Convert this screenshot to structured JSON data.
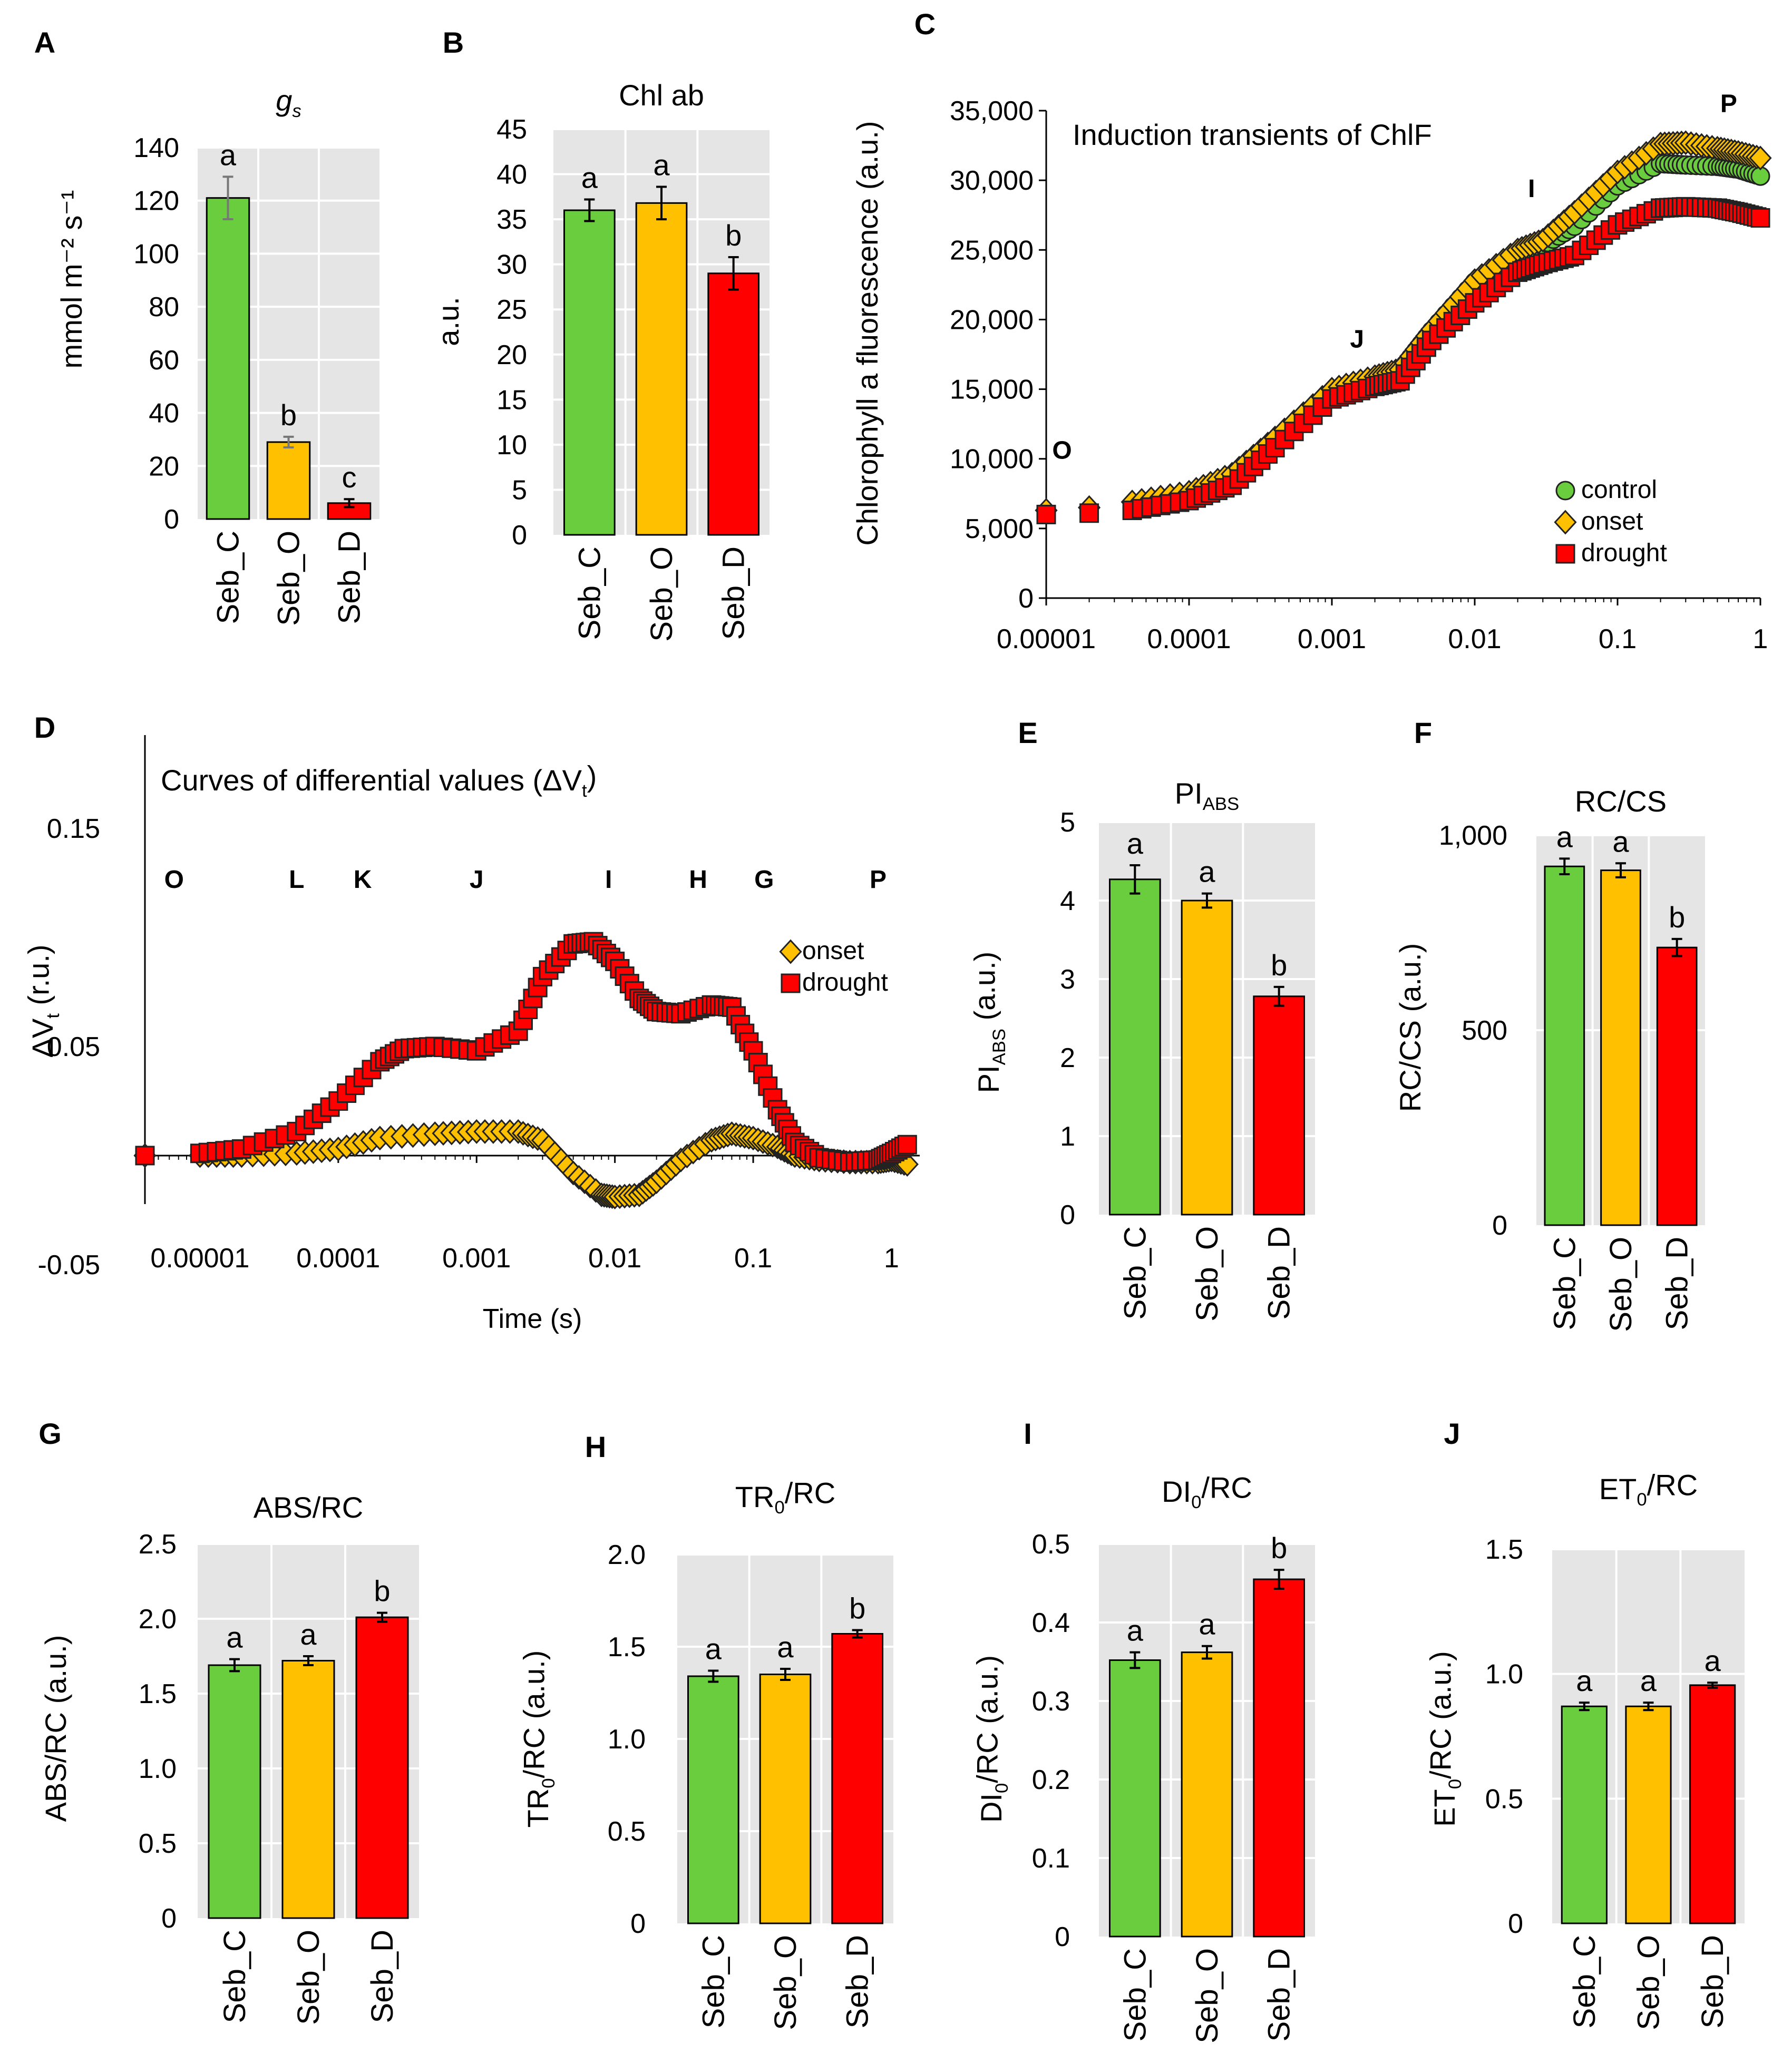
{
  "figure": {
    "panel_labels": [
      "A",
      "B",
      "C",
      "D",
      "E",
      "F",
      "G",
      "H",
      "I",
      "J"
    ]
  },
  "colors": {
    "control": "#6ACD3D",
    "onset": "#FFC000",
    "drought": "#FF0000",
    "plot_bg": "#E5E5E5",
    "gridline": "#FFFFFF"
  },
  "chart_data": [
    {
      "panel": "A",
      "type": "bar",
      "title_main": "g",
      "title_sub": "s",
      "ylabel": "mmol m⁻² s⁻¹",
      "categories": [
        "Seb_C",
        "Seb_O",
        "Seb_D"
      ],
      "values": [
        121,
        29,
        6
      ],
      "errors": [
        8,
        2,
        1.5
      ],
      "letters": [
        "a",
        "b",
        "c"
      ],
      "ylim": [
        0,
        140
      ],
      "yticks": [
        0,
        20,
        40,
        60,
        80,
        100,
        120,
        140
      ],
      "ytick_labels": [
        "0",
        "20",
        "40",
        "60",
        "80",
        "100",
        "120",
        "140"
      ]
    },
    {
      "panel": "B",
      "type": "bar",
      "title_main": "Chl ab",
      "title_sub": "",
      "ylabel": "a.u.",
      "categories": [
        "Seb_C",
        "Seb_O",
        "Seb_D"
      ],
      "values": [
        36,
        36.8,
        29
      ],
      "errors": [
        1.2,
        1.8,
        1.8
      ],
      "letters": [
        "a",
        "a",
        "b"
      ],
      "ylim": [
        0,
        45
      ],
      "yticks": [
        0,
        5,
        10,
        15,
        20,
        25,
        30,
        35,
        40,
        45
      ],
      "ytick_labels": [
        "0",
        "5",
        "10",
        "15",
        "20",
        "25",
        "30",
        "35",
        "40",
        "45"
      ]
    },
    {
      "panel": "C",
      "type": "scatter",
      "title": "Induction transients of ChlF",
      "ylabel": "Chlorophyll a fluorescence (a.u.)",
      "xscale": "log",
      "xlim": [
        1e-05,
        1
      ],
      "xticks": [
        1e-05,
        0.0001,
        0.001,
        0.01,
        0.1,
        1
      ],
      "xtick_labels": [
        "0.00001",
        "0.0001",
        "0.001",
        "0.01",
        "0.1",
        "1"
      ],
      "ylim": [
        0,
        35000
      ],
      "yticks": [
        0,
        5000,
        10000,
        15000,
        20000,
        25000,
        30000,
        35000
      ],
      "ytick_labels": [
        "0",
        "5,000",
        "10,000",
        "15,000",
        "20,000",
        "25,000",
        "30,000",
        "35,000"
      ],
      "phase_labels": [
        {
          "text": "O",
          "x": 1e-05,
          "y": 10000
        },
        {
          "text": "J",
          "x": 0.0015,
          "y": 18000
        },
        {
          "text": "I",
          "x": 0.025,
          "y": 28800
        },
        {
          "text": "P",
          "x": 0.6,
          "y": 34900
        }
      ],
      "legend": [
        "control",
        "onset",
        "drought"
      ],
      "series": [
        {
          "name": "control",
          "marker": "circle",
          "x": [
            1e-05,
            2e-05,
            4e-05,
            0.0001,
            0.0002,
            0.0004,
            0.001,
            0.002,
            0.003,
            0.005,
            0.01,
            0.02,
            0.03,
            0.05,
            0.1,
            0.2,
            0.3,
            0.5,
            0.7,
            1
          ],
          "y": [
            6000,
            6200,
            6500,
            7300,
            8700,
            11200,
            14800,
            15700,
            16300,
            19200,
            22700,
            24800,
            25300,
            26700,
            29600,
            31200,
            31100,
            31000,
            30800,
            30300
          ]
        },
        {
          "name": "onset",
          "marker": "diamond",
          "x": [
            1e-05,
            2e-05,
            4e-05,
            0.0001,
            0.0002,
            0.0004,
            0.001,
            0.002,
            0.003,
            0.005,
            0.01,
            0.02,
            0.03,
            0.05,
            0.1,
            0.2,
            0.3,
            0.5,
            0.7,
            1
          ],
          "y": [
            6300,
            6500,
            6900,
            7600,
            8900,
            11500,
            15000,
            15900,
            16400,
            19300,
            22800,
            25000,
            25700,
            27700,
            30600,
            32600,
            32700,
            32300,
            32000,
            31600
          ]
        },
        {
          "name": "drought",
          "marker": "square",
          "x": [
            1e-05,
            2e-05,
            4e-05,
            0.0001,
            0.0002,
            0.0004,
            0.001,
            0.002,
            0.003,
            0.005,
            0.01,
            0.02,
            0.03,
            0.05,
            0.1,
            0.2,
            0.3,
            0.5,
            0.7,
            1
          ],
          "y": [
            6000,
            6100,
            6300,
            7000,
            8100,
            10800,
            14300,
            15200,
            15600,
            18500,
            21200,
            23400,
            24000,
            24600,
            26800,
            28000,
            28100,
            28000,
            27700,
            27300
          ]
        }
      ]
    },
    {
      "panel": "D",
      "type": "scatter",
      "title": "Curves of differential values (ΔV",
      "title_sub": "t",
      "title_end": ")",
      "ylabel": "ΔV",
      "ylabel_sub": "t",
      "ylabel_end": " (r.u.)",
      "xlabel": "Time (s)",
      "xscale": "log",
      "xlim": [
        4e-06,
        1.6
      ],
      "xticks": [
        1e-05,
        0.0001,
        0.001,
        0.01,
        0.1,
        1
      ],
      "xtick_labels": [
        "0.00001",
        "0.0001",
        "0.001",
        "0.01",
        "0.1",
        "1"
      ],
      "ylim": [
        -0.05,
        0.15
      ],
      "yticks": [
        -0.05,
        0.05,
        0.15
      ],
      "ytick_labels": [
        "-0.05",
        "0.05",
        "0.15"
      ],
      "phase_labels": [
        {
          "text": "O",
          "x": 6.5e-06
        },
        {
          "text": "L",
          "x": 5e-05
        },
        {
          "text": "K",
          "x": 0.00015
        },
        {
          "text": "J",
          "x": 0.001
        },
        {
          "text": "I",
          "x": 0.009
        },
        {
          "text": "H",
          "x": 0.04
        },
        {
          "text": "G",
          "x": 0.12
        },
        {
          "text": "P",
          "x": 0.8
        }
      ],
      "legend": [
        "onset",
        "drought"
      ],
      "series": [
        {
          "name": "onset",
          "marker": "diamond",
          "x": [
            4e-06,
            1e-05,
            2e-05,
            5e-05,
            0.0001,
            0.0002,
            0.0005,
            0.001,
            0.002,
            0.003,
            0.005,
            0.008,
            0.01,
            0.015,
            0.02,
            0.03,
            0.05,
            0.07,
            0.1,
            0.15,
            0.2,
            0.3,
            0.5,
            0.8,
            1,
            1.3
          ],
          "y": [
            0,
            0,
            0,
            0.001,
            0.003,
            0.008,
            0.01,
            0.011,
            0.011,
            0.007,
            -0.008,
            -0.018,
            -0.019,
            -0.018,
            -0.012,
            -0.002,
            0.007,
            0.01,
            0.008,
            0.004,
            0,
            -0.002,
            -0.003,
            -0.003,
            -0.002,
            -0.004
          ]
        },
        {
          "name": "drought",
          "marker": "square",
          "x": [
            4e-06,
            1e-05,
            2e-05,
            5e-05,
            0.0001,
            0.0002,
            0.0003,
            0.0005,
            0.001,
            0.002,
            0.003,
            0.005,
            0.007,
            0.01,
            0.015,
            0.02,
            0.03,
            0.05,
            0.07,
            0.1,
            0.15,
            0.2,
            0.3,
            0.5,
            0.8,
            1,
            1.3
          ],
          "y": [
            0,
            0.001,
            0.003,
            0.011,
            0.025,
            0.043,
            0.049,
            0.05,
            0.048,
            0.057,
            0.082,
            0.097,
            0.098,
            0.089,
            0.072,
            0.066,
            0.065,
            0.069,
            0.068,
            0.048,
            0.021,
            0.006,
            -0.001,
            -0.003,
            -0.002,
            0.001,
            0.005
          ]
        }
      ]
    },
    {
      "panel": "E",
      "type": "bar",
      "title_main": "PI",
      "title_sub": "ABS",
      "ylabel": "PI",
      "ylabel_sub": "ABS",
      "ylabel_end": " (a.u.)",
      "categories": [
        "Seb_C",
        "Seb_O",
        "Seb_D"
      ],
      "values": [
        4.27,
        4.0,
        2.78
      ],
      "errors": [
        0.18,
        0.09,
        0.12
      ],
      "letters": [
        "a",
        "a",
        "b"
      ],
      "ylim": [
        0,
        5
      ],
      "yticks": [
        0,
        1,
        2,
        3,
        4,
        5
      ],
      "ytick_labels": [
        "0",
        "1",
        "2",
        "3",
        "4",
        "5"
      ]
    },
    {
      "panel": "F",
      "type": "bar",
      "title_main": "RC/CS",
      "title_sub": "",
      "ylabel": "RC/CS (a.u.)",
      "categories": [
        "Seb_C",
        "Seb_O",
        "Seb_D"
      ],
      "values": [
        920,
        910,
        712
      ],
      "errors": [
        20,
        18,
        22
      ],
      "letters": [
        "a",
        "a",
        "b"
      ],
      "ylim": [
        0,
        1000
      ],
      "yticks": [
        0,
        500,
        1000
      ],
      "ytick_labels": [
        "0",
        "500",
        "1,000"
      ]
    },
    {
      "panel": "G",
      "type": "bar",
      "title_main": "ABS/RC",
      "title_sub": "",
      "ylabel": "ABS/RC (a.u.)",
      "categories": [
        "Seb_C",
        "Seb_O",
        "Seb_D"
      ],
      "values": [
        1.69,
        1.72,
        2.01
      ],
      "errors": [
        0.04,
        0.03,
        0.03
      ],
      "letters": [
        "a",
        "a",
        "b"
      ],
      "ylim": [
        0,
        2.5
      ],
      "yticks": [
        0,
        0.5,
        1,
        1.5,
        2,
        2.5
      ],
      "ytick_labels": [
        "0",
        "0.5",
        "1.0",
        "1.5",
        "2.0",
        "2.5"
      ]
    },
    {
      "panel": "H",
      "type": "bar",
      "title_main": "TR",
      "title_sub": "0",
      "title_end": "/RC",
      "ylabel": "TR",
      "ylabel_sub": "0",
      "ylabel_end": "/RC (a.u.)",
      "categories": [
        "Seb_C",
        "Seb_O",
        "Seb_D"
      ],
      "values": [
        1.34,
        1.35,
        1.57
      ],
      "errors": [
        0.03,
        0.03,
        0.02
      ],
      "letters": [
        "a",
        "a",
        "b"
      ],
      "ylim": [
        0,
        2
      ],
      "yticks": [
        0,
        0.5,
        1,
        1.5,
        2
      ],
      "ytick_labels": [
        "0",
        "0.5",
        "1.0",
        "1.5",
        "2.0"
      ]
    },
    {
      "panel": "I",
      "type": "bar",
      "title_main": "DI",
      "title_sub": "0",
      "title_end": "/RC",
      "ylabel": "DI",
      "ylabel_sub": "0",
      "ylabel_end": "/RC (a.u.)",
      "categories": [
        "Seb_C",
        "Seb_O",
        "Seb_D"
      ],
      "values": [
        0.352,
        0.362,
        0.455
      ],
      "errors": [
        0.01,
        0.008,
        0.012
      ],
      "letters": [
        "a",
        "a",
        "b"
      ],
      "ylim": [
        0,
        0.5
      ],
      "yticks": [
        0,
        0.1,
        0.2,
        0.3,
        0.4,
        0.5
      ],
      "ytick_labels": [
        "0",
        "0.1",
        "0.2",
        "0.3",
        "0.4",
        "0.5"
      ]
    },
    {
      "panel": "J",
      "type": "bar",
      "title_main": "ET",
      "title_sub": "0",
      "title_end": "/RC",
      "ylabel": "ET",
      "ylabel_sub": "0",
      "ylabel_end": "/RC (a.u.)",
      "categories": [
        "Seb_C",
        "Seb_O",
        "Seb_D"
      ],
      "values": [
        0.87,
        0.87,
        0.955
      ],
      "errors": [
        0.015,
        0.015,
        0.01
      ],
      "letters": [
        "a",
        "a",
        "a"
      ],
      "ylim": [
        0,
        1.5
      ],
      "yticks": [
        0,
        0.5,
        1,
        1.5
      ],
      "ytick_labels": [
        "0",
        "0.5",
        "1.0",
        "1.5"
      ]
    }
  ]
}
